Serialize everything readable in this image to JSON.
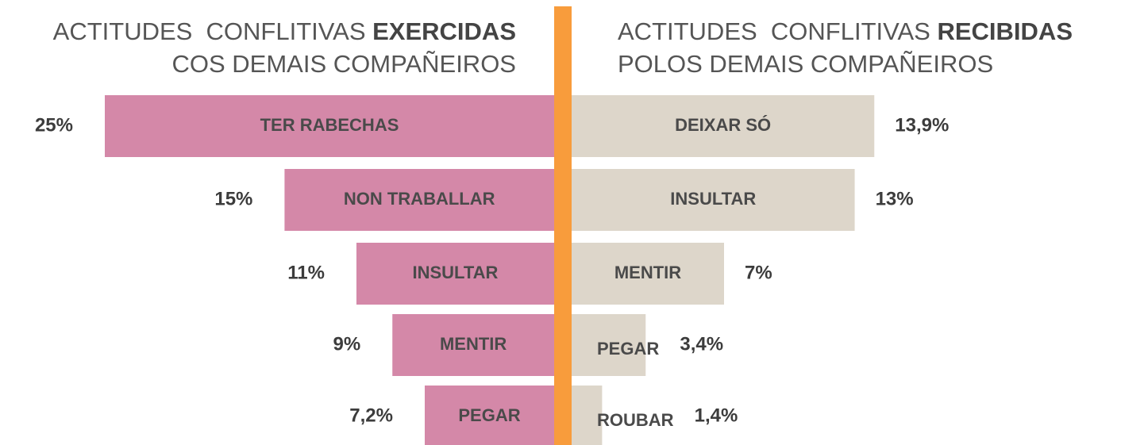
{
  "chart_data": [
    {
      "type": "hbar",
      "side": "left",
      "title": "ACTITUDES  CONFLITIVAS ",
      "title_emphasis": "EXERCIDAS",
      "subtitle": "COS DEMAIS COMPAÑEIROS",
      "categories": [
        "TER RABECHAS",
        "NON TRABALLAR",
        "INSULTAR",
        "MENTIR",
        "PEGAR"
      ],
      "values": [
        25,
        15,
        11,
        9,
        7.2
      ],
      "value_labels": [
        "25%",
        "15%",
        "11%",
        "9%",
        "7,2%"
      ],
      "color": "#d488a8",
      "xlim": [
        0,
        25
      ]
    },
    {
      "type": "hbar",
      "side": "right",
      "title": "ACTITUDES  CONFLITIVAS ",
      "title_emphasis": "RECIBIDAS",
      "subtitle": "POLOS DEMAIS COMPAÑEIROS",
      "categories": [
        "DEIXAR SÓ",
        "INSULTAR",
        "MENTIR",
        "PEGAR",
        "ROUBAR"
      ],
      "values": [
        13.9,
        13,
        7,
        3.4,
        1.4
      ],
      "value_labels": [
        "13,9%",
        "13%",
        "7%",
        "3,4%",
        "1,4%"
      ],
      "color": "#ddd6ca",
      "xlim": [
        0,
        14
      ]
    }
  ]
}
